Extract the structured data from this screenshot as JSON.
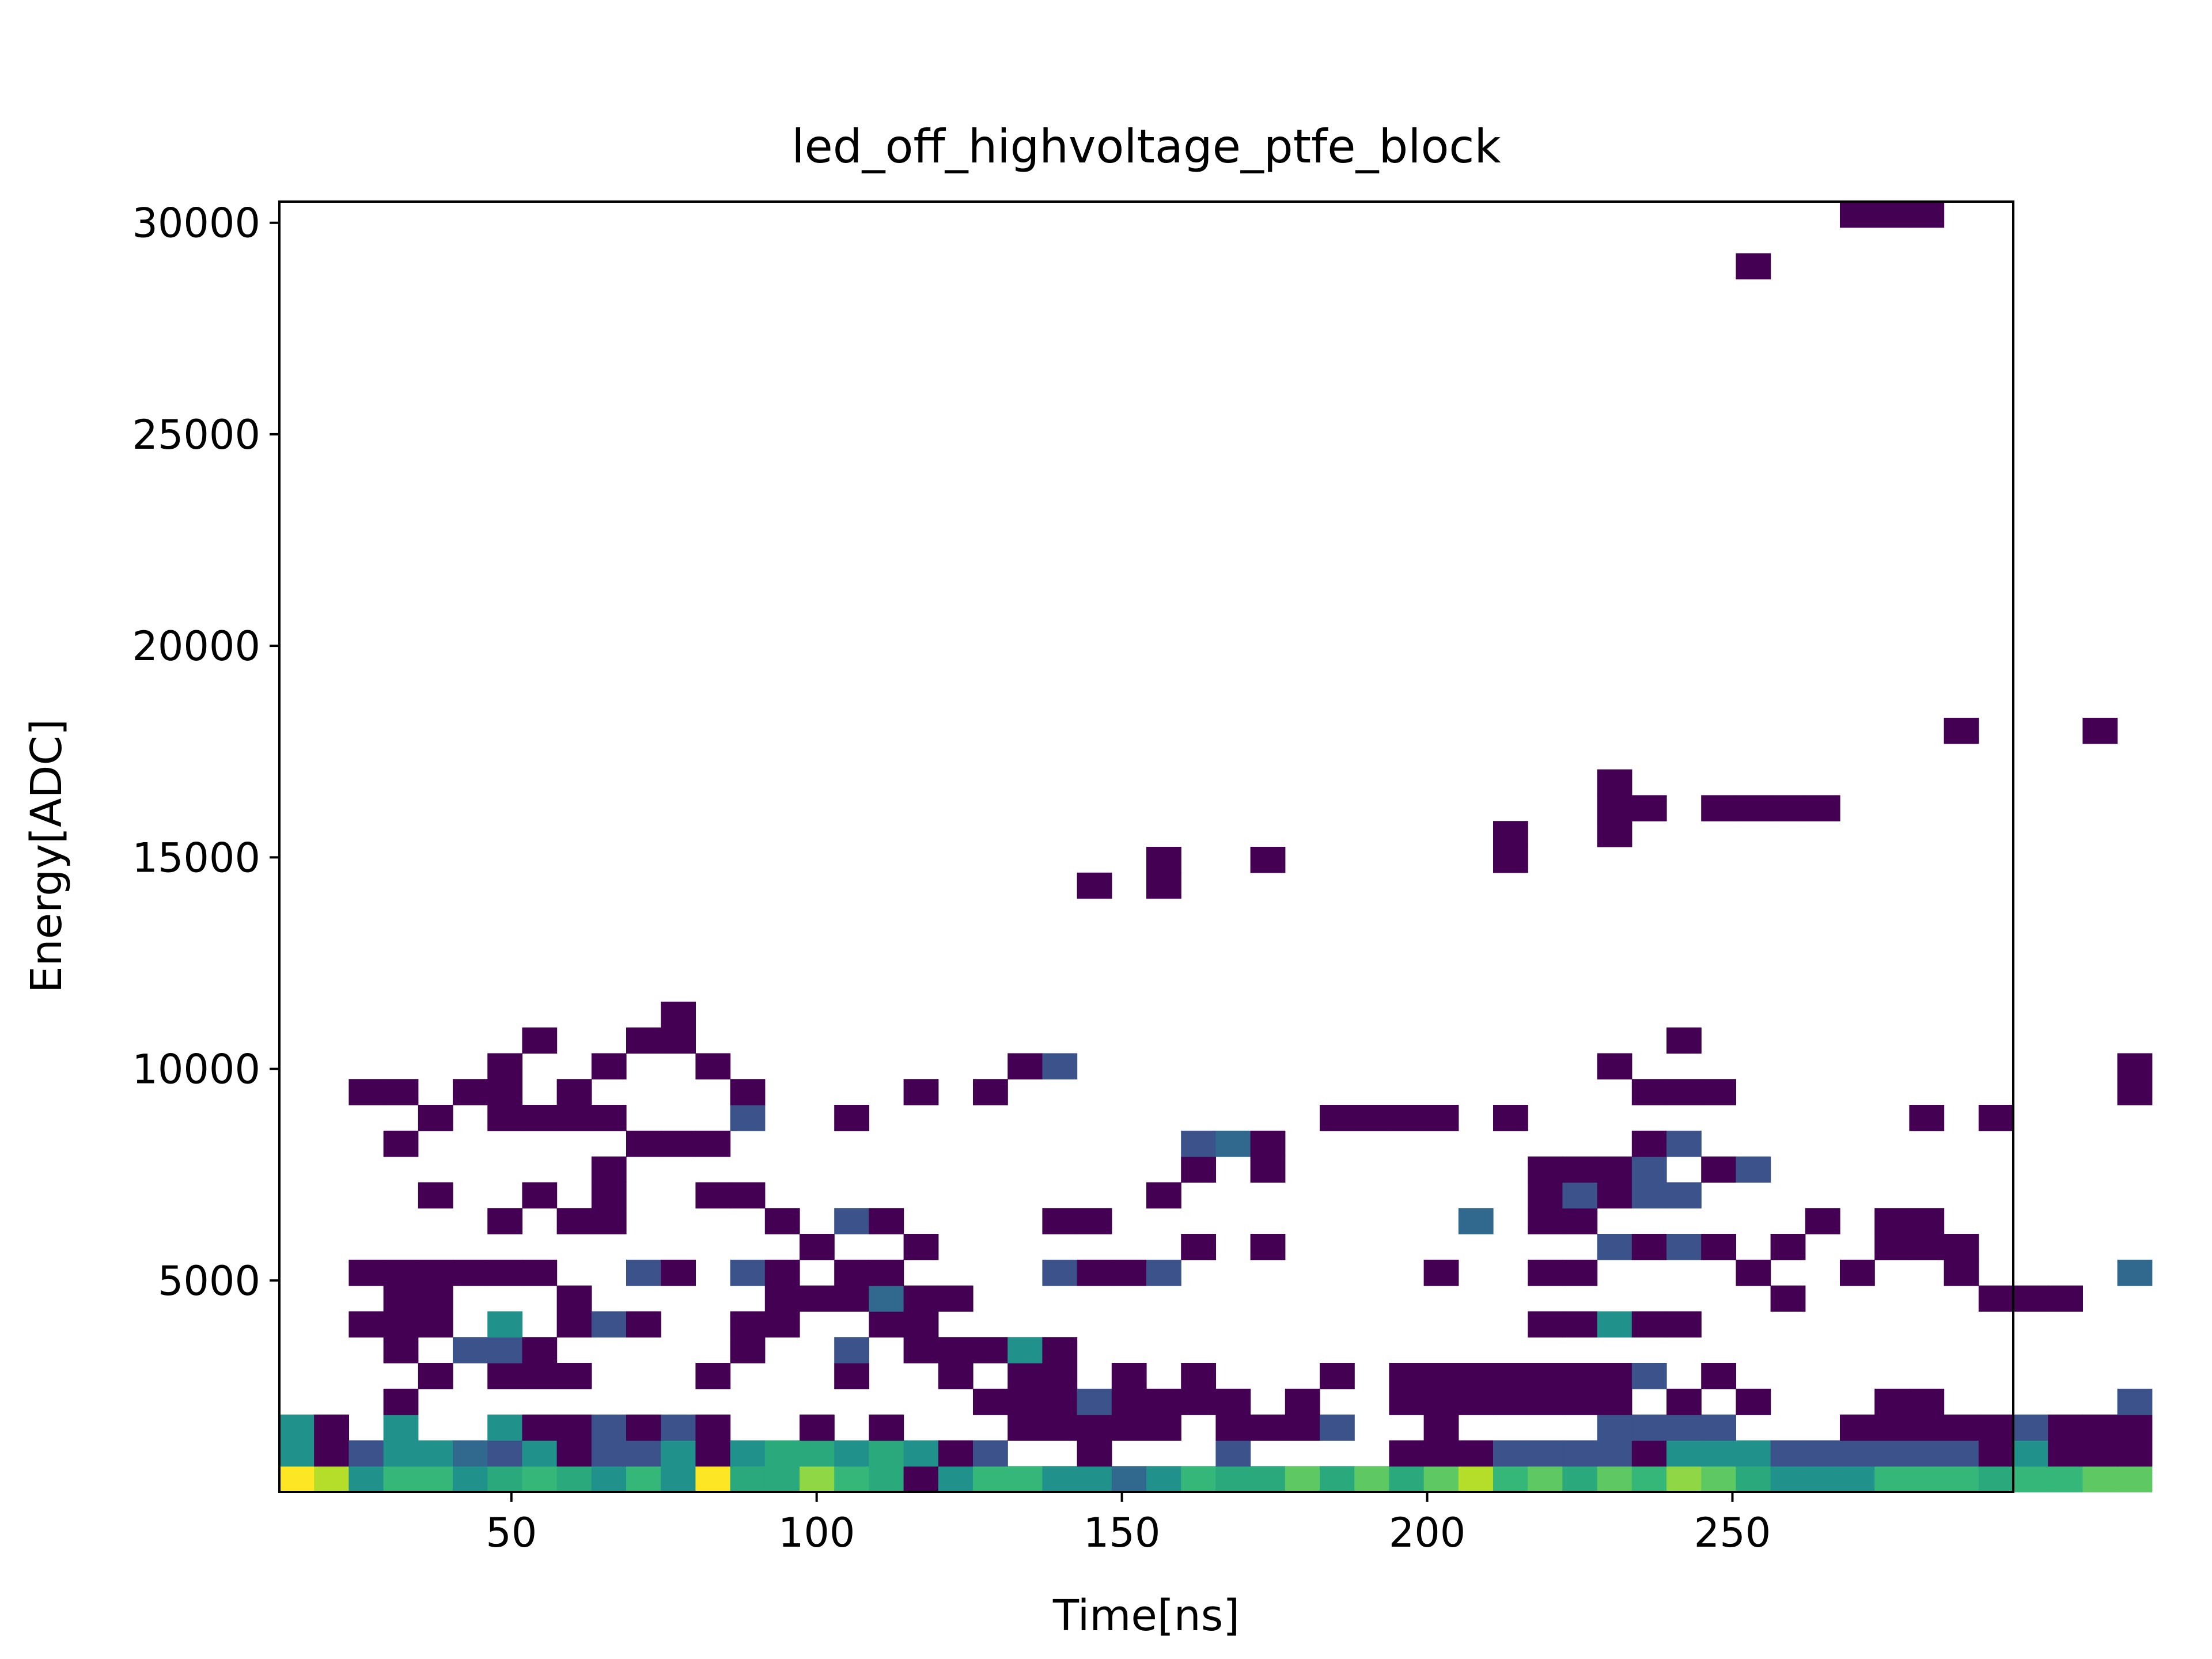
{
  "chart_data": {
    "type": "heatmap",
    "title": "led_off_highvoltage_ptfe_block",
    "xlabel": "Time[ns]",
    "ylabel": "Energy[ADC]",
    "xlim": [
      12,
      296
    ],
    "ylim": [
      0,
      30500
    ],
    "xticks": [
      50,
      100,
      150,
      200,
      250
    ],
    "yticks": [
      5000,
      10000,
      15000,
      20000,
      25000,
      30000
    ],
    "grid": false,
    "legend": "none",
    "colormap": "viridis",
    "colors": {
      "c1": "#440154",
      "c2": "#3b528b",
      "c3": "#31688e",
      "c4": "#21918c",
      "c5": "#2aa97d",
      "c6": "#35b779",
      "c7": "#5ec962",
      "c8": "#8fd744",
      "c9": "#b5de2b",
      "c10": "#fde725"
    },
    "bins": {
      "x0": 12,
      "dx": 5.68,
      "y0": 0,
      "dy": 610
    },
    "cells": [
      [
        0,
        0,
        10
      ],
      [
        1,
        0,
        9
      ],
      [
        2,
        0,
        4
      ],
      [
        3,
        0,
        6
      ],
      [
        4,
        0,
        6
      ],
      [
        5,
        0,
        4
      ],
      [
        6,
        0,
        5
      ],
      [
        7,
        0,
        6
      ],
      [
        8,
        0,
        5
      ],
      [
        9,
        0,
        4
      ],
      [
        10,
        0,
        6
      ],
      [
        11,
        0,
        4
      ],
      [
        12,
        0,
        10
      ],
      [
        13,
        0,
        5
      ],
      [
        14,
        0,
        5
      ],
      [
        15,
        0,
        8
      ],
      [
        16,
        0,
        6
      ],
      [
        17,
        0,
        5
      ],
      [
        18,
        0,
        1
      ],
      [
        19,
        0,
        4
      ],
      [
        20,
        0,
        6
      ],
      [
        21,
        0,
        6
      ],
      [
        22,
        0,
        4
      ],
      [
        23,
        0,
        4
      ],
      [
        24,
        0,
        3
      ],
      [
        25,
        0,
        4
      ],
      [
        26,
        0,
        6
      ],
      [
        27,
        0,
        5
      ],
      [
        28,
        0,
        5
      ],
      [
        29,
        0,
        7
      ],
      [
        30,
        0,
        5
      ],
      [
        31,
        0,
        7
      ],
      [
        32,
        0,
        5
      ],
      [
        33,
        0,
        7
      ],
      [
        34,
        0,
        9
      ],
      [
        35,
        0,
        6
      ],
      [
        36,
        0,
        7
      ],
      [
        37,
        0,
        5
      ],
      [
        38,
        0,
        7
      ],
      [
        39,
        0,
        6
      ],
      [
        40,
        0,
        8
      ],
      [
        41,
        0,
        7
      ],
      [
        42,
        0,
        5
      ],
      [
        43,
        0,
        4
      ],
      [
        44,
        0,
        4
      ],
      [
        45,
        0,
        4
      ],
      [
        46,
        0,
        6
      ],
      [
        47,
        0,
        6
      ],
      [
        48,
        0,
        6
      ],
      [
        49,
        0,
        5
      ],
      [
        50,
        0,
        6
      ],
      [
        51,
        0,
        6
      ],
      [
        52,
        0,
        7
      ],
      [
        53,
        0,
        7
      ],
      [
        0,
        1,
        4
      ],
      [
        1,
        1,
        1
      ],
      [
        2,
        1,
        2
      ],
      [
        3,
        1,
        4
      ],
      [
        4,
        1,
        4
      ],
      [
        5,
        1,
        3
      ],
      [
        6,
        1,
        2
      ],
      [
        7,
        1,
        4
      ],
      [
        8,
        1,
        1
      ],
      [
        9,
        1,
        2
      ],
      [
        10,
        1,
        2
      ],
      [
        11,
        1,
        4
      ],
      [
        12,
        1,
        1
      ],
      [
        13,
        1,
        4
      ],
      [
        14,
        1,
        5
      ],
      [
        15,
        1,
        5
      ],
      [
        16,
        1,
        4
      ],
      [
        17,
        1,
        5
      ],
      [
        18,
        1,
        4
      ],
      [
        19,
        1,
        1
      ],
      [
        20,
        1,
        2
      ],
      [
        23,
        1,
        1
      ],
      [
        27,
        1,
        2
      ],
      [
        32,
        1,
        1
      ],
      [
        33,
        1,
        1
      ],
      [
        34,
        1,
        1
      ],
      [
        35,
        1,
        2
      ],
      [
        36,
        1,
        2
      ],
      [
        37,
        1,
        2
      ],
      [
        38,
        1,
        2
      ],
      [
        39,
        1,
        1
      ],
      [
        40,
        1,
        4
      ],
      [
        41,
        1,
        4
      ],
      [
        42,
        1,
        4
      ],
      [
        43,
        1,
        2
      ],
      [
        44,
        1,
        2
      ],
      [
        45,
        1,
        2
      ],
      [
        46,
        1,
        2
      ],
      [
        47,
        1,
        2
      ],
      [
        48,
        1,
        2
      ],
      [
        49,
        1,
        1
      ],
      [
        50,
        1,
        4
      ],
      [
        51,
        1,
        1
      ],
      [
        52,
        1,
        1
      ],
      [
        53,
        1,
        1
      ],
      [
        0,
        2,
        4
      ],
      [
        1,
        2,
        1
      ],
      [
        3,
        2,
        4
      ],
      [
        6,
        2,
        4
      ],
      [
        7,
        2,
        1
      ],
      [
        8,
        2,
        1
      ],
      [
        9,
        2,
        2
      ],
      [
        10,
        2,
        1
      ],
      [
        11,
        2,
        2
      ],
      [
        12,
        2,
        1
      ],
      [
        15,
        2,
        1
      ],
      [
        17,
        2,
        1
      ],
      [
        21,
        2,
        1
      ],
      [
        22,
        2,
        1
      ],
      [
        23,
        2,
        1
      ],
      [
        24,
        2,
        1
      ],
      [
        25,
        2,
        1
      ],
      [
        27,
        2,
        1
      ],
      [
        28,
        2,
        1
      ],
      [
        29,
        2,
        1
      ],
      [
        30,
        2,
        2
      ],
      [
        33,
        2,
        1
      ],
      [
        38,
        2,
        2
      ],
      [
        39,
        2,
        2
      ],
      [
        40,
        2,
        2
      ],
      [
        41,
        2,
        2
      ],
      [
        45,
        2,
        1
      ],
      [
        46,
        2,
        1
      ],
      [
        47,
        2,
        1
      ],
      [
        48,
        2,
        1
      ],
      [
        49,
        2,
        1
      ],
      [
        50,
        2,
        2
      ],
      [
        51,
        2,
        1
      ],
      [
        52,
        2,
        1
      ],
      [
        53,
        2,
        1
      ],
      [
        3,
        3,
        1
      ],
      [
        20,
        3,
        1
      ],
      [
        21,
        3,
        1
      ],
      [
        22,
        3,
        1
      ],
      [
        23,
        3,
        2
      ],
      [
        24,
        3,
        1
      ],
      [
        25,
        3,
        1
      ],
      [
        26,
        3,
        1
      ],
      [
        27,
        3,
        1
      ],
      [
        29,
        3,
        1
      ],
      [
        32,
        3,
        1
      ],
      [
        33,
        3,
        1
      ],
      [
        34,
        3,
        1
      ],
      [
        35,
        3,
        1
      ],
      [
        36,
        3,
        1
      ],
      [
        37,
        3,
        1
      ],
      [
        38,
        3,
        1
      ],
      [
        40,
        3,
        1
      ],
      [
        42,
        3,
        1
      ],
      [
        46,
        3,
        1
      ],
      [
        47,
        3,
        1
      ],
      [
        53,
        3,
        2
      ],
      [
        4,
        4,
        1
      ],
      [
        6,
        4,
        1
      ],
      [
        7,
        4,
        1
      ],
      [
        8,
        4,
        1
      ],
      [
        12,
        4,
        1
      ],
      [
        16,
        4,
        1
      ],
      [
        19,
        4,
        1
      ],
      [
        21,
        4,
        1
      ],
      [
        22,
        4,
        1
      ],
      [
        24,
        4,
        1
      ],
      [
        26,
        4,
        1
      ],
      [
        30,
        4,
        1
      ],
      [
        32,
        4,
        1
      ],
      [
        33,
        4,
        1
      ],
      [
        34,
        4,
        1
      ],
      [
        35,
        4,
        1
      ],
      [
        36,
        4,
        1
      ],
      [
        37,
        4,
        1
      ],
      [
        38,
        4,
        1
      ],
      [
        39,
        4,
        2
      ],
      [
        41,
        4,
        1
      ],
      [
        3,
        5,
        1
      ],
      [
        5,
        5,
        2
      ],
      [
        6,
        5,
        2
      ],
      [
        7,
        5,
        1
      ],
      [
        13,
        5,
        1
      ],
      [
        16,
        5,
        2
      ],
      [
        18,
        5,
        1
      ],
      [
        19,
        5,
        1
      ],
      [
        20,
        5,
        1
      ],
      [
        21,
        5,
        4
      ],
      [
        22,
        5,
        1
      ],
      [
        2,
        6,
        1
      ],
      [
        3,
        6,
        1
      ],
      [
        4,
        6,
        1
      ],
      [
        6,
        6,
        4
      ],
      [
        8,
        6,
        1
      ],
      [
        9,
        6,
        2
      ],
      [
        10,
        6,
        1
      ],
      [
        13,
        6,
        1
      ],
      [
        14,
        6,
        1
      ],
      [
        17,
        6,
        1
      ],
      [
        18,
        6,
        1
      ],
      [
        36,
        6,
        1
      ],
      [
        37,
        6,
        1
      ],
      [
        38,
        6,
        4
      ],
      [
        39,
        6,
        1
      ],
      [
        40,
        6,
        1
      ],
      [
        3,
        7,
        1
      ],
      [
        4,
        7,
        1
      ],
      [
        8,
        7,
        1
      ],
      [
        14,
        7,
        1
      ],
      [
        15,
        7,
        1
      ],
      [
        16,
        7,
        1
      ],
      [
        17,
        7,
        3
      ],
      [
        18,
        7,
        1
      ],
      [
        19,
        7,
        1
      ],
      [
        43,
        7,
        1
      ],
      [
        49,
        7,
        1
      ],
      [
        50,
        7,
        1
      ],
      [
        51,
        7,
        1
      ],
      [
        2,
        8,
        1
      ],
      [
        3,
        8,
        1
      ],
      [
        4,
        8,
        1
      ],
      [
        5,
        8,
        1
      ],
      [
        6,
        8,
        1
      ],
      [
        7,
        8,
        1
      ],
      [
        10,
        8,
        2
      ],
      [
        11,
        8,
        1
      ],
      [
        13,
        8,
        2
      ],
      [
        14,
        8,
        1
      ],
      [
        16,
        8,
        1
      ],
      [
        17,
        8,
        1
      ],
      [
        22,
        8,
        2
      ],
      [
        23,
        8,
        1
      ],
      [
        24,
        8,
        1
      ],
      [
        25,
        8,
        2
      ],
      [
        33,
        8,
        1
      ],
      [
        36,
        8,
        1
      ],
      [
        37,
        8,
        1
      ],
      [
        42,
        8,
        1
      ],
      [
        45,
        8,
        1
      ],
      [
        48,
        8,
        1
      ],
      [
        53,
        8,
        3
      ],
      [
        15,
        9,
        1
      ],
      [
        18,
        9,
        1
      ],
      [
        26,
        9,
        1
      ],
      [
        28,
        9,
        1
      ],
      [
        38,
        9,
        2
      ],
      [
        39,
        9,
        1
      ],
      [
        40,
        9,
        2
      ],
      [
        41,
        9,
        1
      ],
      [
        43,
        9,
        1
      ],
      [
        46,
        9,
        1
      ],
      [
        47,
        9,
        1
      ],
      [
        48,
        9,
        1
      ],
      [
        6,
        10,
        1
      ],
      [
        8,
        10,
        1
      ],
      [
        9,
        10,
        1
      ],
      [
        14,
        10,
        1
      ],
      [
        16,
        10,
        2
      ],
      [
        17,
        10,
        1
      ],
      [
        22,
        10,
        1
      ],
      [
        23,
        10,
        1
      ],
      [
        34,
        10,
        3
      ],
      [
        36,
        10,
        1
      ],
      [
        37,
        10,
        1
      ],
      [
        44,
        10,
        1
      ],
      [
        46,
        10,
        1
      ],
      [
        47,
        10,
        1
      ],
      [
        4,
        11,
        1
      ],
      [
        7,
        11,
        1
      ],
      [
        9,
        11,
        1
      ],
      [
        12,
        11,
        1
      ],
      [
        13,
        11,
        1
      ],
      [
        25,
        11,
        1
      ],
      [
        36,
        11,
        1
      ],
      [
        37,
        11,
        2
      ],
      [
        38,
        11,
        1
      ],
      [
        39,
        11,
        2
      ],
      [
        40,
        11,
        2
      ],
      [
        9,
        12,
        1
      ],
      [
        26,
        12,
        1
      ],
      [
        28,
        12,
        1
      ],
      [
        36,
        12,
        1
      ],
      [
        37,
        12,
        1
      ],
      [
        38,
        12,
        1
      ],
      [
        39,
        12,
        2
      ],
      [
        41,
        12,
        1
      ],
      [
        42,
        12,
        2
      ],
      [
        3,
        13,
        1
      ],
      [
        10,
        13,
        1
      ],
      [
        11,
        13,
        1
      ],
      [
        12,
        13,
        1
      ],
      [
        26,
        13,
        2
      ],
      [
        27,
        13,
        3
      ],
      [
        28,
        13,
        1
      ],
      [
        39,
        13,
        1
      ],
      [
        40,
        13,
        2
      ],
      [
        4,
        14,
        1
      ],
      [
        6,
        14,
        1
      ],
      [
        7,
        14,
        1
      ],
      [
        8,
        14,
        1
      ],
      [
        9,
        14,
        1
      ],
      [
        13,
        14,
        2
      ],
      [
        16,
        14,
        1
      ],
      [
        30,
        14,
        1
      ],
      [
        31,
        14,
        1
      ],
      [
        32,
        14,
        1
      ],
      [
        33,
        14,
        1
      ],
      [
        35,
        14,
        1
      ],
      [
        47,
        14,
        1
      ],
      [
        49,
        14,
        1
      ],
      [
        2,
        15,
        1
      ],
      [
        3,
        15,
        1
      ],
      [
        5,
        15,
        1
      ],
      [
        6,
        15,
        1
      ],
      [
        8,
        15,
        1
      ],
      [
        13,
        15,
        1
      ],
      [
        18,
        15,
        1
      ],
      [
        20,
        15,
        1
      ],
      [
        39,
        15,
        1
      ],
      [
        40,
        15,
        1
      ],
      [
        41,
        15,
        1
      ],
      [
        53,
        15,
        1
      ],
      [
        6,
        16,
        1
      ],
      [
        9,
        16,
        1
      ],
      [
        12,
        16,
        1
      ],
      [
        21,
        16,
        1
      ],
      [
        22,
        16,
        2
      ],
      [
        38,
        16,
        1
      ],
      [
        53,
        16,
        1
      ],
      [
        7,
        17,
        1
      ],
      [
        10,
        17,
        1
      ],
      [
        11,
        17,
        1
      ],
      [
        40,
        17,
        1
      ],
      [
        11,
        18,
        1
      ],
      [
        23,
        23,
        1
      ],
      [
        25,
        23,
        1
      ],
      [
        25,
        24,
        1
      ],
      [
        28,
        24,
        1
      ],
      [
        35,
        24,
        1
      ],
      [
        35,
        25,
        1
      ],
      [
        38,
        25,
        1
      ],
      [
        38,
        26,
        1
      ],
      [
        39,
        26,
        1
      ],
      [
        41,
        26,
        1
      ],
      [
        42,
        26,
        1
      ],
      [
        43,
        26,
        1
      ],
      [
        44,
        26,
        1
      ],
      [
        38,
        27,
        1
      ],
      [
        48,
        29,
        1
      ],
      [
        52,
        29,
        1
      ],
      [
        42,
        47,
        1
      ],
      [
        45,
        49,
        1
      ],
      [
        46,
        49,
        1
      ],
      [
        47,
        49,
        1
      ]
    ]
  }
}
